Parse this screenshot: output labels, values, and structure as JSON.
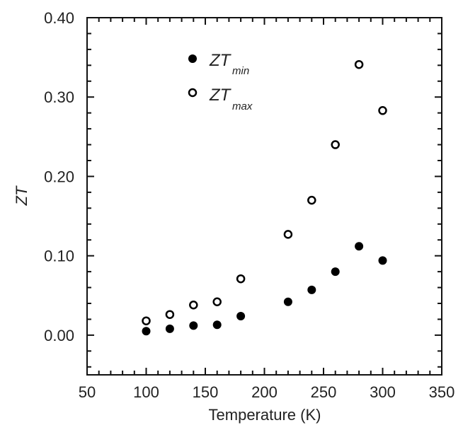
{
  "chart_data": {
    "type": "scatter",
    "title": "",
    "xlabel": "Temperature (K)",
    "ylabel": "ZT",
    "xlim": [
      50,
      350
    ],
    "ylim": [
      -0.05,
      0.4
    ],
    "xticks": [
      50,
      100,
      150,
      200,
      250,
      300,
      350
    ],
    "xtick_labels": [
      "50",
      "100",
      "150",
      "200",
      "250",
      "300",
      "350"
    ],
    "yticks": [
      0.0,
      0.1,
      0.2,
      0.3,
      0.4
    ],
    "ytick_labels": [
      "0.00",
      "0.10",
      "0.20",
      "0.30",
      "0.40"
    ],
    "grid": false,
    "legend_position": "top-left",
    "series": [
      {
        "name": "ZT_min",
        "label_main": "ZT",
        "label_sub": "min",
        "marker": "filled-circle",
        "color": "#000000",
        "x": [
          100,
          120,
          140,
          160,
          180,
          220,
          240,
          260,
          280,
          300
        ],
        "y": [
          0.005,
          0.008,
          0.012,
          0.013,
          0.024,
          0.042,
          0.057,
          0.08,
          0.112,
          0.094
        ]
      },
      {
        "name": "ZT_max",
        "label_main": "ZT",
        "label_sub": "max",
        "marker": "open-circle",
        "color": "#000000",
        "x": [
          100,
          120,
          140,
          160,
          180,
          220,
          240,
          260,
          280,
          300
        ],
        "y": [
          0.018,
          0.026,
          0.038,
          0.042,
          0.071,
          0.127,
          0.17,
          0.24,
          0.341,
          0.283
        ]
      }
    ]
  }
}
